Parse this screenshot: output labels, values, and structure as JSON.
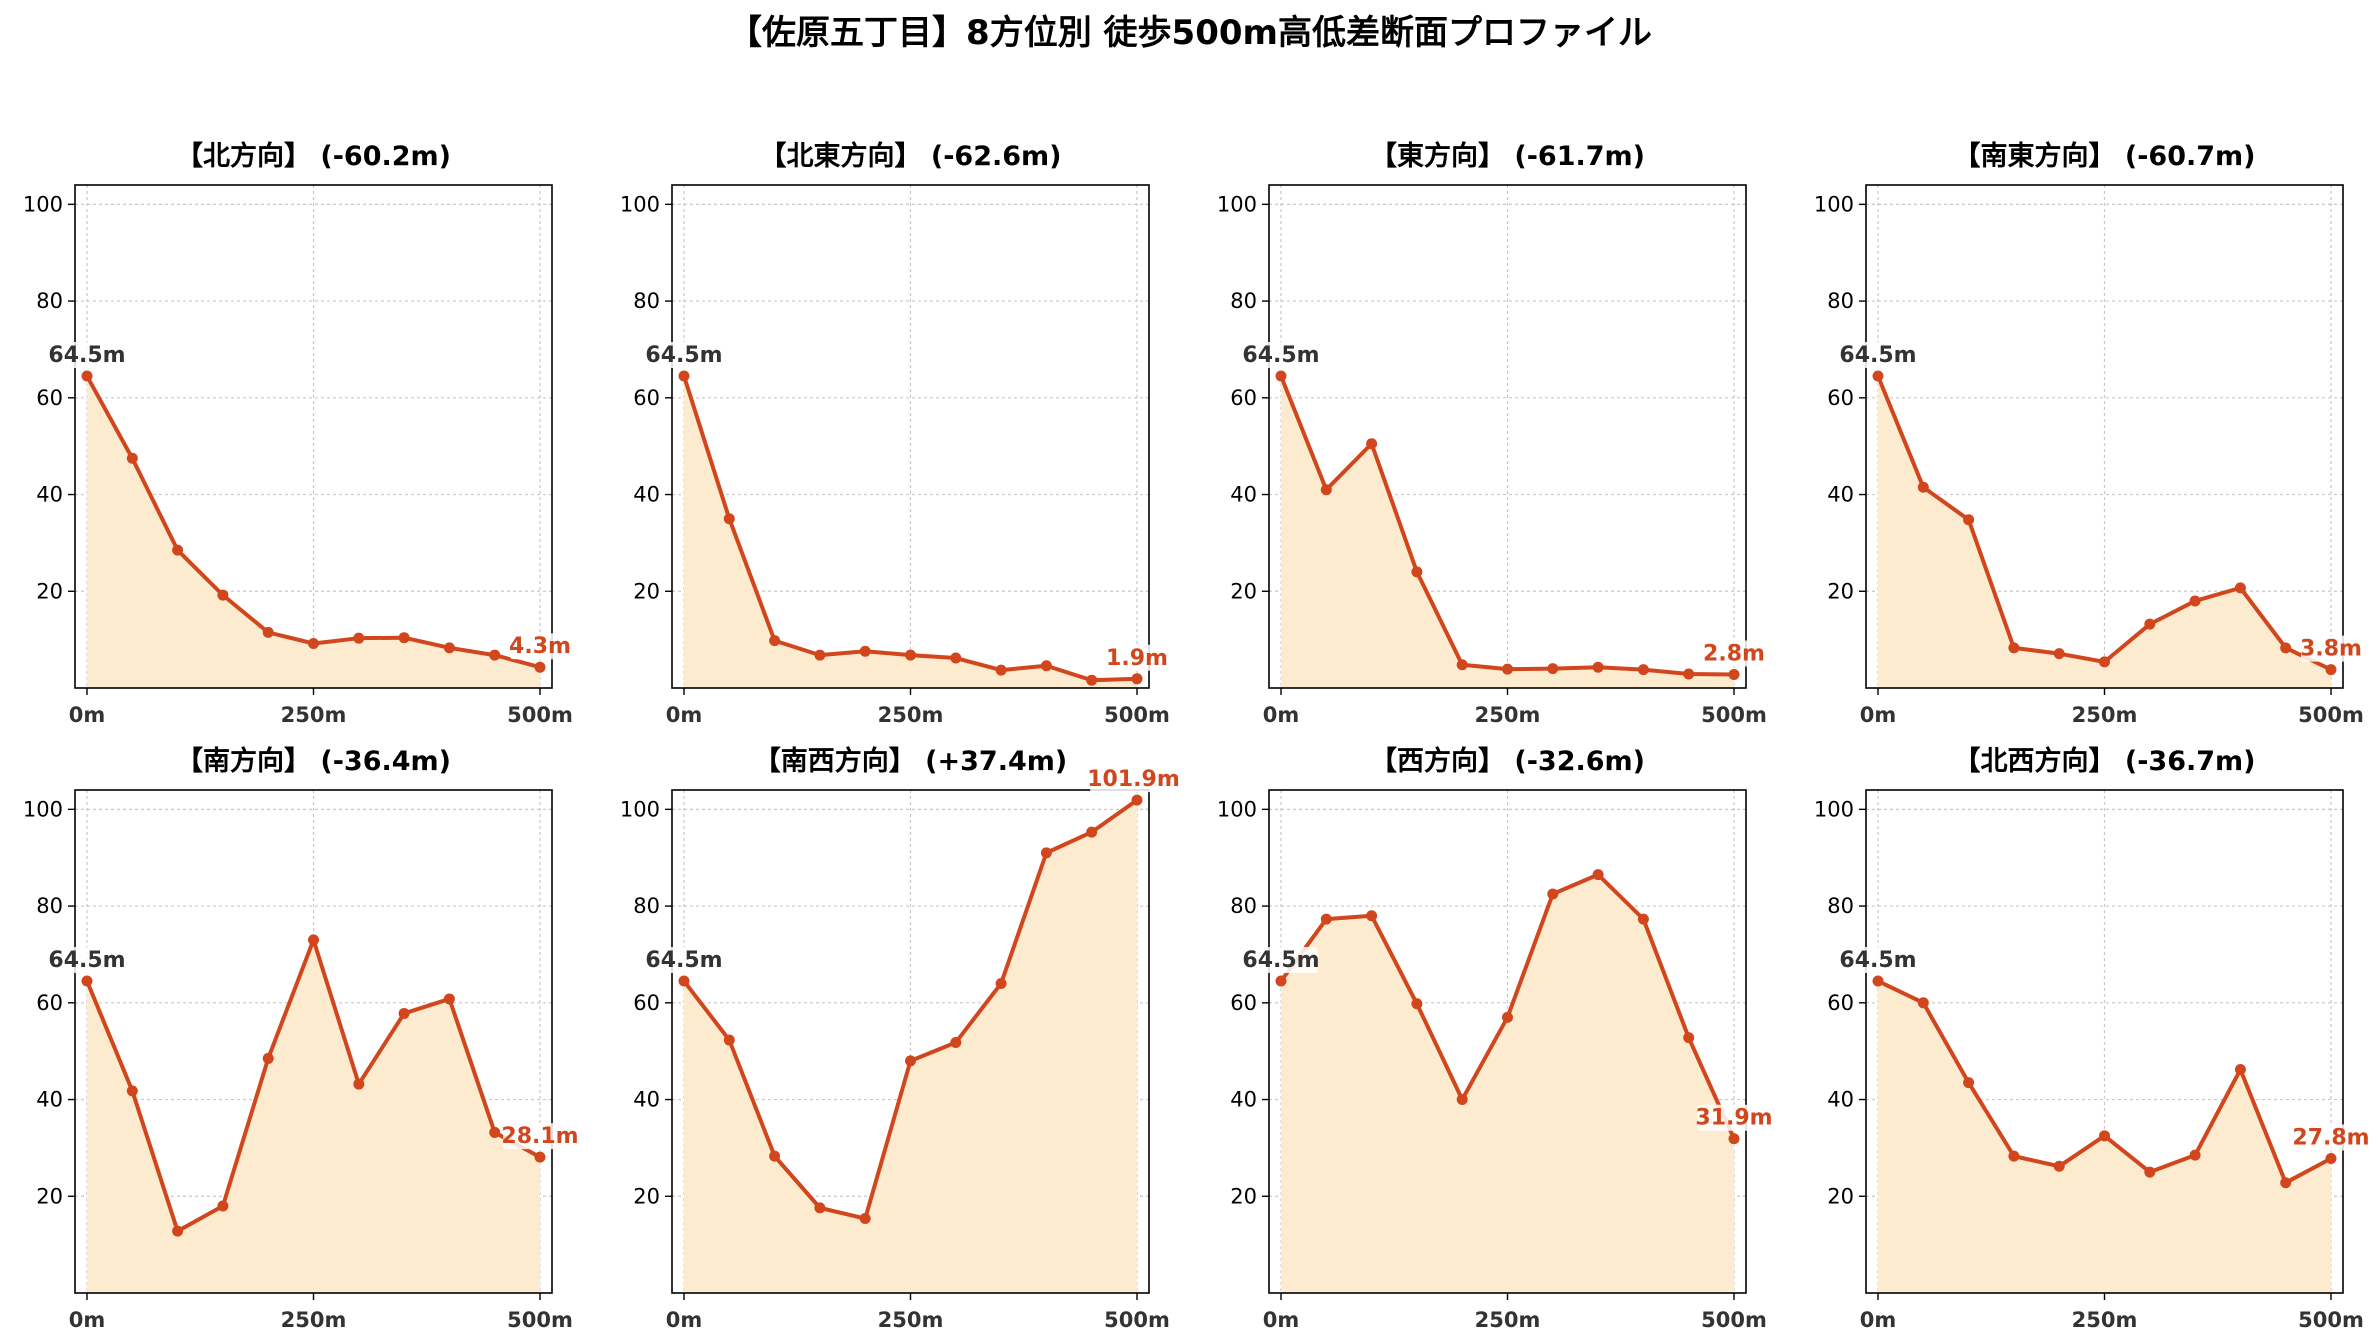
{
  "figure": {
    "title": "【佐原五丁目】8方位別 徒歩500m高低差断面プロファイル"
  },
  "colors": {
    "line": "#d2461d",
    "fill": "#fdebd0",
    "start_label": "#333333",
    "end_label": "#d2461d",
    "grid": "#c8c8c8",
    "axis": "#000000"
  },
  "chart_data": [
    {
      "type": "area",
      "title": "【北方向】 (-60.2m)",
      "x": [
        0,
        50,
        100,
        150,
        200,
        250,
        300,
        350,
        400,
        450,
        500
      ],
      "series": [
        {
          "values": [
            64.5,
            47.5,
            28.5,
            19.2,
            11.5,
            9.2,
            10.3,
            10.4,
            8.3,
            6.8,
            4.3
          ]
        }
      ],
      "xticks": [
        "0m",
        "250m",
        "500m"
      ],
      "yticks": [
        20,
        40,
        60,
        80,
        100
      ],
      "ylim": [
        0,
        104
      ],
      "start_label": "64.5m",
      "end_label": "4.3m",
      "grid": true
    },
    {
      "type": "area",
      "title": "【北東方向】 (-62.6m)",
      "x": [
        0,
        50,
        100,
        150,
        200,
        250,
        300,
        350,
        400,
        450,
        500
      ],
      "series": [
        {
          "values": [
            64.5,
            35.0,
            9.8,
            6.8,
            7.6,
            6.8,
            6.2,
            3.7,
            4.6,
            1.6,
            1.9
          ]
        }
      ],
      "xticks": [
        "0m",
        "250m",
        "500m"
      ],
      "yticks": [
        20,
        40,
        60,
        80,
        100
      ],
      "ylim": [
        0,
        104
      ],
      "start_label": "64.5m",
      "end_label": "1.9m",
      "grid": true
    },
    {
      "type": "area",
      "title": "【東方向】 (-61.7m)",
      "x": [
        0,
        50,
        100,
        150,
        200,
        250,
        300,
        350,
        400,
        450,
        500
      ],
      "series": [
        {
          "values": [
            64.5,
            41.0,
            50.5,
            24.0,
            4.8,
            3.9,
            4.0,
            4.3,
            3.8,
            2.9,
            2.8
          ]
        }
      ],
      "xticks": [
        "0m",
        "250m",
        "500m"
      ],
      "yticks": [
        20,
        40,
        60,
        80,
        100
      ],
      "ylim": [
        0,
        104
      ],
      "start_label": "64.5m",
      "end_label": "2.8m",
      "grid": true
    },
    {
      "type": "area",
      "title": "【南東方向】 (-60.7m)",
      "x": [
        0,
        50,
        100,
        150,
        200,
        250,
        300,
        350,
        400,
        450,
        500
      ],
      "series": [
        {
          "values": [
            64.5,
            41.5,
            34.8,
            8.3,
            7.1,
            5.4,
            13.2,
            18.0,
            20.7,
            8.3,
            3.8
          ]
        }
      ],
      "xticks": [
        "0m",
        "250m",
        "500m"
      ],
      "yticks": [
        20,
        40,
        60,
        80,
        100
      ],
      "ylim": [
        0,
        104
      ],
      "start_label": "64.5m",
      "end_label": "3.8m",
      "grid": true
    },
    {
      "type": "area",
      "title": "【南方向】 (-36.4m)",
      "x": [
        0,
        50,
        100,
        150,
        200,
        250,
        300,
        350,
        400,
        450,
        500
      ],
      "series": [
        {
          "values": [
            64.5,
            41.8,
            12.8,
            18.0,
            48.5,
            73.0,
            43.2,
            57.8,
            60.8,
            33.2,
            28.1
          ]
        }
      ],
      "xticks": [
        "0m",
        "250m",
        "500m"
      ],
      "yticks": [
        20,
        40,
        60,
        80,
        100
      ],
      "ylim": [
        0,
        104
      ],
      "start_label": "64.5m",
      "end_label": "28.1m",
      "grid": true
    },
    {
      "type": "area",
      "title": "【南西方向】 (+37.4m)",
      "x": [
        0,
        50,
        100,
        150,
        200,
        250,
        300,
        350,
        400,
        450,
        500
      ],
      "series": [
        {
          "values": [
            64.5,
            52.3,
            28.3,
            17.6,
            15.4,
            48.0,
            51.8,
            64.0,
            91.0,
            95.3,
            101.9
          ]
        }
      ],
      "xticks": [
        "0m",
        "250m",
        "500m"
      ],
      "yticks": [
        20,
        40,
        60,
        80,
        100
      ],
      "ylim": [
        0,
        104
      ],
      "start_label": "64.5m",
      "end_label": "101.9m",
      "grid": true
    },
    {
      "type": "area",
      "title": "【西方向】 (-32.6m)",
      "x": [
        0,
        50,
        100,
        150,
        200,
        250,
        300,
        350,
        400,
        450,
        500
      ],
      "series": [
        {
          "values": [
            64.5,
            77.3,
            78.0,
            59.8,
            40.0,
            57.0,
            82.5,
            86.5,
            77.3,
            52.8,
            31.9
          ]
        }
      ],
      "xticks": [
        "0m",
        "250m",
        "500m"
      ],
      "yticks": [
        20,
        40,
        60,
        80,
        100
      ],
      "ylim": [
        0,
        104
      ],
      "start_label": "64.5m",
      "end_label": "31.9m",
      "grid": true
    },
    {
      "type": "area",
      "title": "【北西方向】 (-36.7m)",
      "x": [
        0,
        50,
        100,
        150,
        200,
        250,
        300,
        350,
        400,
        450,
        500
      ],
      "series": [
        {
          "values": [
            64.5,
            60.0,
            43.5,
            28.3,
            26.2,
            32.5,
            25.0,
            28.5,
            46.2,
            22.8,
            27.8
          ]
        }
      ],
      "xticks": [
        "0m",
        "250m",
        "500m"
      ],
      "yticks": [
        20,
        40,
        60,
        80,
        100
      ],
      "ylim": [
        0,
        104
      ],
      "start_label": "64.5m",
      "end_label": "27.8m",
      "grid": true
    }
  ]
}
